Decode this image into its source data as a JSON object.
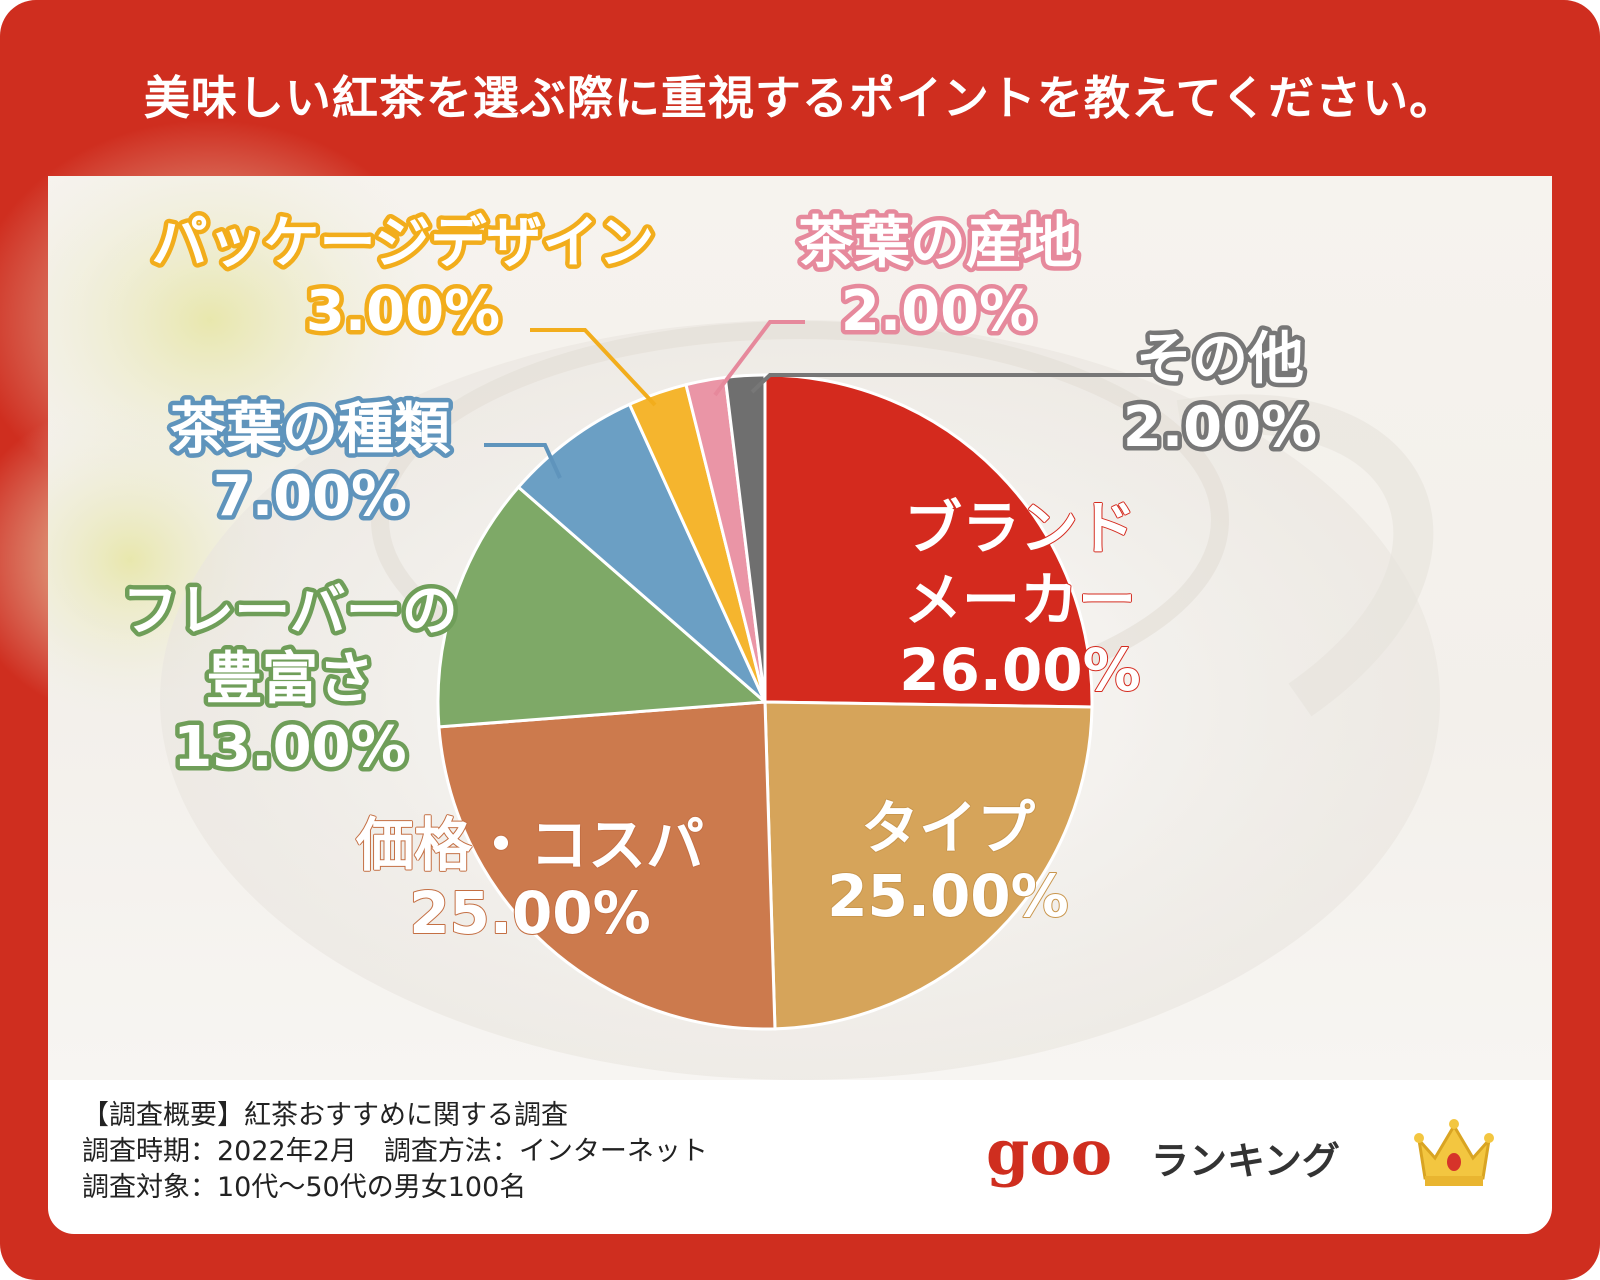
{
  "title": "美味しい紅茶を選ぶ際に重視するポイントを教えてください。",
  "chart_data": {
    "type": "pie",
    "slices": [
      {
        "lines": [
          "ブランド",
          "メーカー"
        ],
        "value": 26.0,
        "label": "26.00%",
        "color": "#d42a1e",
        "text_color": "#ffffff",
        "stroke_color": "#d42a1e"
      },
      {
        "lines": [
          "タイプ"
        ],
        "value": 25.0,
        "label": "25.00%",
        "color": "#d6a45a",
        "text_color": "#ffffff",
        "stroke_color": "#c9964d"
      },
      {
        "lines": [
          "価格・コスパ"
        ],
        "value": 25.0,
        "label": "25.00%",
        "color": "#cc7a4d",
        "text_color": "#ffffff",
        "stroke_color": "#c46f43"
      },
      {
        "lines": [
          "フレーバーの",
          "豊富さ"
        ],
        "value": 13.0,
        "label": "13.00%",
        "color": "#7ea967",
        "text_color": "#ffffff",
        "stroke_color": "#6f9e59"
      },
      {
        "lines": [
          "茶葉の種類"
        ],
        "value": 7.0,
        "label": "7.00%",
        "color": "#6b9fc4",
        "text_color": "#ffffff",
        "stroke_color": "#5f94bc"
      },
      {
        "lines": [
          "パッケージデザイン"
        ],
        "value": 3.0,
        "label": "3.00%",
        "color": "#f5b52e",
        "text_color": "#ffffff",
        "stroke_color": "#f2ad1c"
      },
      {
        "lines": [
          "茶葉の産地"
        ],
        "value": 2.0,
        "label": "2.00%",
        "color": "#ea95a6",
        "text_color": "#ffffff",
        "stroke_color": "#e6899c"
      },
      {
        "lines": [
          "その他"
        ],
        "value": 2.0,
        "label": "2.00%",
        "color": "#6f6f6f",
        "text_color": "#ffffff",
        "stroke_color": "#777777"
      }
    ]
  },
  "footer": {
    "line1": "【調査概要】紅茶おすすめに関する調査",
    "line2": "調査時期：2022年2月　調査方法：インターネット",
    "line3": "調査対象：10代～50代の男女100名"
  },
  "logo": {
    "goo": "goo",
    "ranking": "ランキング"
  }
}
